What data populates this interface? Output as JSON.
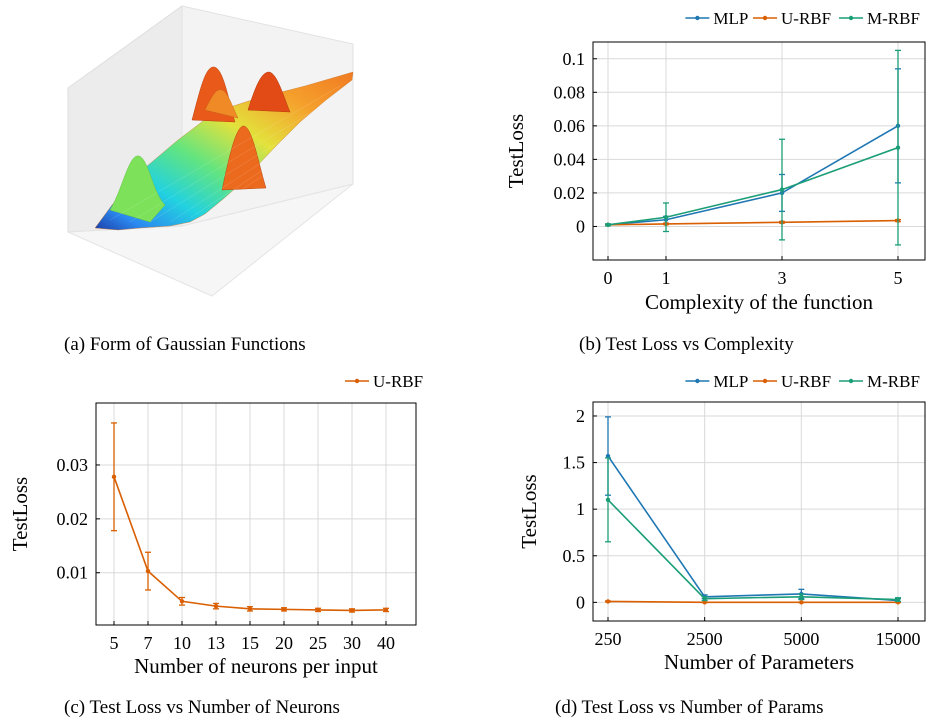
{
  "captions": {
    "a": "(a) Form of Gaussian Functions",
    "b": "(b) Test Loss vs Complexity",
    "c": "(c) Test Loss vs Number of Neurons",
    "d": "(d) Test Loss vs Number of Params"
  },
  "colors": {
    "MLP": "#1f77b4",
    "U-RBF": "#d95f02",
    "M-RBF": "#1b9e77"
  },
  "chart_data": [
    {
      "id": "a",
      "type": "surface",
      "description_type": "3d-surface",
      "colormap": "jet"
    },
    {
      "id": "b",
      "type": "line",
      "xlabel": "Complexity of the function",
      "ylabel": "TestLoss",
      "categories": [
        "0",
        "1",
        "3",
        "5"
      ],
      "ylim": [
        -0.02,
        0.11
      ],
      "yticks": [
        0,
        0.02,
        0.04,
        0.06,
        0.08,
        0.1
      ],
      "ytick_labels": [
        "0",
        "0.02",
        "0.04",
        "0.06",
        "0.08",
        "0.1"
      ],
      "grid": true,
      "legend": "top-right-outside",
      "series": [
        {
          "name": "MLP",
          "values": [
            0.001,
            0.004,
            0.02,
            0.06
          ],
          "err": [
            0.0005,
            0.002,
            0.011,
            0.034
          ]
        },
        {
          "name": "U-RBF",
          "values": [
            0.001,
            0.0015,
            0.0025,
            0.0035
          ],
          "err": [
            0.0003,
            0.0004,
            0.0005,
            0.0006
          ]
        },
        {
          "name": "M-RBF",
          "values": [
            0.001,
            0.0055,
            0.022,
            0.047
          ],
          "err": [
            0.0005,
            0.0085,
            0.03,
            0.058
          ]
        }
      ]
    },
    {
      "id": "c",
      "type": "line",
      "xlabel": "Number of neurons per input",
      "ylabel": "TestLoss",
      "categories": [
        "5",
        "7",
        "10",
        "13",
        "15",
        "20",
        "25",
        "30",
        "40"
      ],
      "ylim": [
        0.0003,
        0.0415
      ],
      "yticks": [
        0.01,
        0.02,
        0.03
      ],
      "ytick_labels": [
        "0.01",
        "0.02",
        "0.03"
      ],
      "grid": true,
      "legend": "top-right-outside",
      "series": [
        {
          "name": "U-RBF",
          "values": [
            0.0278,
            0.0103,
            0.0047,
            0.0038,
            0.0033,
            0.0032,
            0.0031,
            0.003,
            0.0031
          ],
          "err": [
            0.01,
            0.0035,
            0.0007,
            0.0005,
            0.0004,
            0.0003,
            0.0003,
            0.0003,
            0.0003
          ]
        }
      ]
    },
    {
      "id": "d",
      "type": "line",
      "xlabel": "Number of Parameters",
      "ylabel": "TestLoss",
      "categories": [
        "250",
        "2500",
        "5000",
        "15000"
      ],
      "ylim": [
        -0.2,
        2.15
      ],
      "yticks": [
        0,
        0.5,
        1,
        1.5,
        2
      ],
      "ytick_labels": [
        "0",
        "0.5",
        "1",
        "1.5",
        "2"
      ],
      "grid": true,
      "legend": "top-right-outside",
      "series": [
        {
          "name": "MLP",
          "values": [
            1.57,
            0.06,
            0.09,
            0.02
          ],
          "err": [
            0.42,
            0.02,
            0.05,
            0.02
          ]
        },
        {
          "name": "U-RBF",
          "values": [
            0.01,
            0.0,
            0.0,
            0.0
          ],
          "err": [
            0.005,
            0.002,
            0.002,
            0.002
          ]
        },
        {
          "name": "M-RBF",
          "values": [
            1.1,
            0.04,
            0.06,
            0.03
          ],
          "err": [
            0.45,
            0.02,
            0.03,
            0.02
          ]
        }
      ]
    }
  ]
}
